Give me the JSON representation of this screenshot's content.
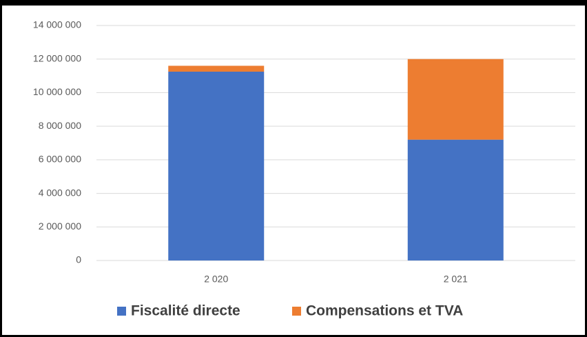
{
  "chart_data": {
    "type": "stacked_bar",
    "categories": [
      "2 020",
      "2 021"
    ],
    "series": [
      {
        "name": "Fiscalité directe",
        "color": "#4472c4",
        "values": [
          11250000,
          7200000
        ]
      },
      {
        "name": "Compensations et TVA",
        "color": "#ed7d31",
        "values": [
          350000,
          4800000
        ]
      }
    ],
    "ylim": [
      0,
      14000000
    ],
    "yticks": [
      0,
      {
        "value": 2000000,
        "label": "2 000 000"
      },
      {
        "value": 4000000,
        "label": "4 000 000"
      },
      {
        "value": 6000000,
        "label": "6 000 000"
      },
      {
        "value": 8000000,
        "label": "8 000 000"
      },
      {
        "value": 10000000,
        "label": "10 000 000"
      },
      {
        "value": 12000000,
        "label": "12 000 000"
      },
      {
        "value": 14000000,
        "label": "14 000 000"
      }
    ],
    "grid": true,
    "legend": "bottom"
  }
}
